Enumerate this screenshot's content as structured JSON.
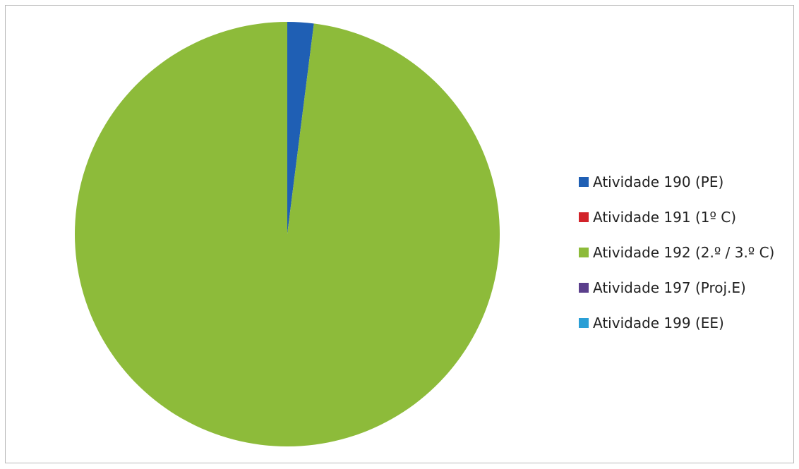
{
  "chart_data": {
    "type": "pie",
    "title": "",
    "categories": [
      "Atividade 190 (PE)",
      "Atividade 191 (1º C)",
      "Atividade 192 (2.º / 3.º C)",
      "Atividade 197 (Proj.E)",
      "Atividade 199 (EE)"
    ],
    "values": [
      2,
      0,
      98,
      0,
      0
    ],
    "colors": [
      "#1f5fb4",
      "#d2232a",
      "#8dbb3a",
      "#5b3f8c",
      "#2a9fd6"
    ],
    "legend_position": "right"
  }
}
